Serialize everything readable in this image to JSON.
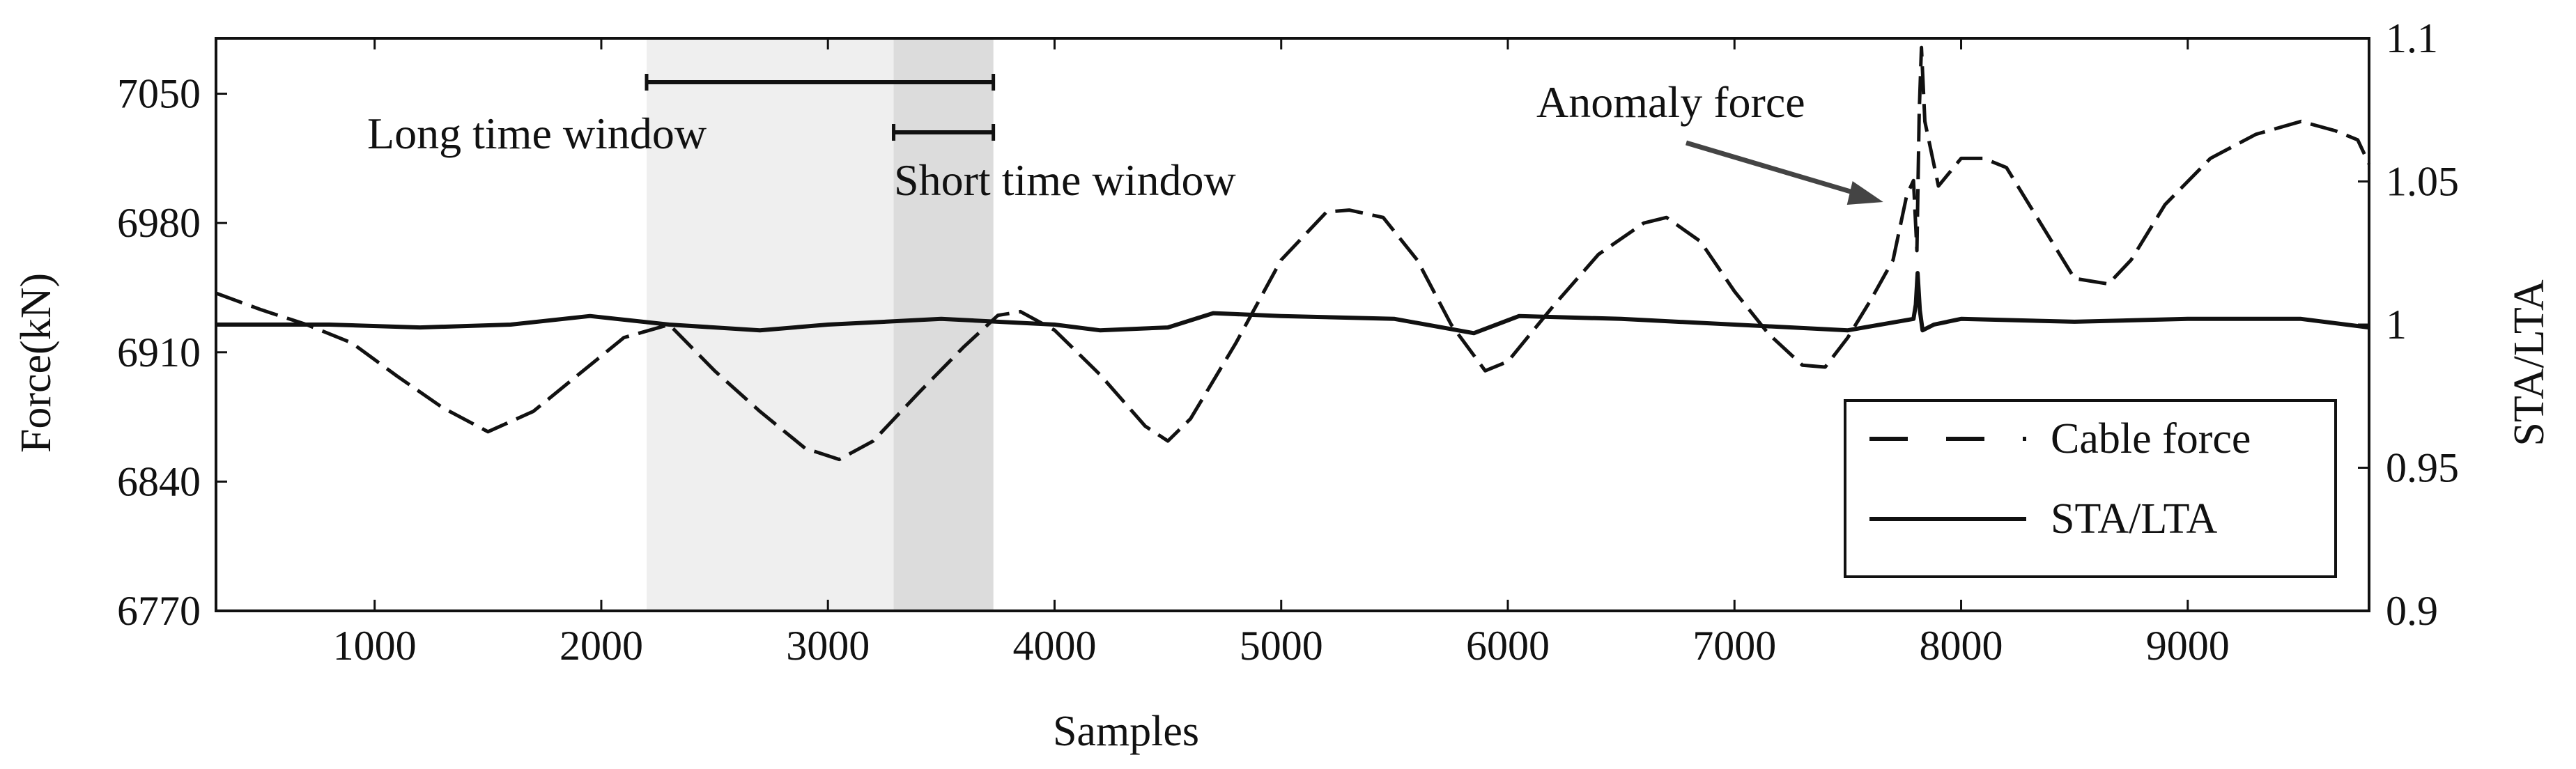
{
  "chart_data": {
    "type": "line",
    "xlabel": "Samples",
    "ylabel_left": "Force(kN)",
    "ylabel_right": "STA/LTA",
    "xlim": [
      300,
      9800
    ],
    "ylim_left": [
      6770,
      7080
    ],
    "ylim_right": [
      0.9,
      1.1
    ],
    "x_ticks": [
      1000,
      2000,
      3000,
      4000,
      5000,
      6000,
      7000,
      8000,
      9000
    ],
    "y_ticks_left": [
      6770,
      6840,
      6910,
      6980,
      7050
    ],
    "y_ticks_right": [
      "0.9",
      "0.95",
      "1",
      "1.05",
      "1.1"
    ],
    "series": [
      {
        "name": "Cable force",
        "axis": "left",
        "style": "dashed",
        "x": [
          300,
          500,
          700,
          900,
          1100,
          1300,
          1500,
          1700,
          1900,
          2100,
          2300,
          2500,
          2700,
          2900,
          3050,
          3200,
          3400,
          3600,
          3750,
          3850,
          4000,
          4200,
          4400,
          4500,
          4600,
          4800,
          5000,
          5200,
          5300,
          5450,
          5600,
          5750,
          5900,
          6000,
          6200,
          6400,
          6600,
          6700,
          6850,
          7000,
          7150,
          7300,
          7400,
          7500,
          7600,
          7700,
          7760,
          7790,
          7805,
          7815,
          7825,
          7840,
          7900,
          8000,
          8100,
          8200,
          8350,
          8500,
          8650,
          8750,
          8900,
          9100,
          9300,
          9500,
          9650,
          9750,
          9800
        ],
        "values": [
          6942,
          6933,
          6925,
          6915,
          6897,
          6880,
          6867,
          6878,
          6898,
          6918,
          6925,
          6900,
          6878,
          6858,
          6852,
          6862,
          6888,
          6913,
          6930,
          6932,
          6922,
          6898,
          6870,
          6862,
          6874,
          6915,
          6960,
          6986,
          6987,
          6983,
          6960,
          6925,
          6900,
          6905,
          6935,
          6963,
          6980,
          6983,
          6970,
          6943,
          6920,
          6903,
          6902,
          6918,
          6938,
          6960,
          6995,
          7003,
          6965,
          7040,
          7075,
          7035,
          7000,
          7015,
          7015,
          7010,
          6980,
          6950,
          6947,
          6960,
          6990,
          7015,
          7028,
          7035,
          7030,
          7025,
          7012
        ]
      },
      {
        "name": "STA/LTA",
        "axis": "right",
        "style": "solid",
        "x": [
          300,
          800,
          1200,
          1600,
          1950,
          2300,
          2700,
          3000,
          3500,
          4000,
          4200,
          4500,
          4700,
          5000,
          5500,
          5850,
          6050,
          6500,
          7000,
          7500,
          7790,
          7800,
          7808,
          7818,
          7830,
          7880,
          8000,
          8500,
          9000,
          9500,
          9800
        ],
        "values": [
          1.0,
          1.0,
          0.999,
          1.0,
          1.003,
          1.0,
          0.998,
          1.0,
          1.002,
          1.0,
          0.998,
          0.999,
          1.004,
          1.003,
          1.002,
          0.997,
          1.003,
          1.002,
          1.0,
          0.998,
          1.002,
          1.007,
          1.018,
          1.005,
          0.998,
          1.0,
          1.002,
          1.001,
          1.002,
          1.002,
          0.999
        ]
      }
    ],
    "annotations": {
      "long_window": {
        "label": "Long time window",
        "x_start": 2200,
        "x_end": 3730
      },
      "short_window": {
        "label": "Short time window",
        "x_start": 3290,
        "x_end": 3730
      },
      "anomaly": {
        "label": "Anomaly force",
        "x": 7810
      }
    },
    "legend": {
      "placement": "bottom-right",
      "entries": [
        "Cable force",
        "STA/LTA"
      ]
    },
    "colors": {
      "long_window_shade": "#efefef",
      "short_window_shade": "#dcdcdc",
      "line": "#111111"
    }
  }
}
